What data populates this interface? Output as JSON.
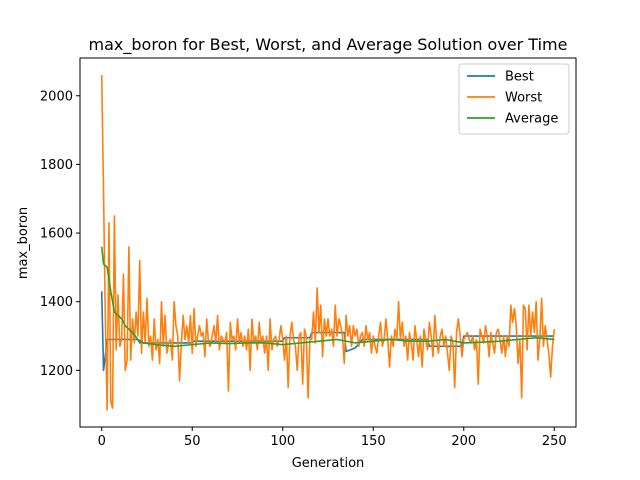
{
  "chart_data": {
    "type": "line",
    "title": "max_boron for Best, Worst, and Average Solution over Time",
    "xlabel": "Generation",
    "ylabel": "max_boron",
    "xlim": [
      -12,
      262
    ],
    "ylim": [
      1035,
      2110
    ],
    "xticks": [
      0,
      50,
      100,
      150,
      200,
      250
    ],
    "yticks": [
      1200,
      1400,
      1600,
      1800,
      2000
    ],
    "grid": false,
    "legend_position": "top-right",
    "series": [
      {
        "name": "Best",
        "color": "#1f77b4",
        "points": [
          [
            0,
            1430
          ],
          [
            1,
            1200
          ],
          [
            3,
            1290
          ],
          [
            20,
            1290
          ],
          [
            21,
            1280
          ],
          [
            50,
            1280
          ],
          [
            51,
            1285
          ],
          [
            100,
            1285
          ],
          [
            101,
            1295
          ],
          [
            115,
            1295
          ],
          [
            116,
            1310
          ],
          [
            134,
            1310
          ],
          [
            135,
            1255
          ],
          [
            140,
            1265
          ],
          [
            144,
            1290
          ],
          [
            180,
            1290
          ],
          [
            181,
            1270
          ],
          [
            199,
            1270
          ],
          [
            200,
            1300
          ],
          [
            250,
            1300
          ]
        ]
      },
      {
        "name": "Worst",
        "color": "#ff7f0e",
        "points": [
          [
            0,
            2060
          ],
          [
            1,
            1720
          ],
          [
            2,
            1350
          ],
          [
            3,
            1085
          ],
          [
            4,
            1630
          ],
          [
            5,
            1110
          ],
          [
            6,
            1090
          ],
          [
            7,
            1650
          ],
          [
            8,
            1260
          ],
          [
            9,
            1420
          ],
          [
            10,
            1270
          ],
          [
            11,
            1290
          ],
          [
            12,
            1480
          ],
          [
            13,
            1200
          ],
          [
            14,
            1230
          ],
          [
            15,
            1560
          ],
          [
            16,
            1230
          ],
          [
            17,
            1350
          ],
          [
            18,
            1280
          ],
          [
            19,
            1370
          ],
          [
            20,
            1300
          ],
          [
            21,
            1520
          ],
          [
            22,
            1250
          ],
          [
            23,
            1370
          ],
          [
            24,
            1280
          ],
          [
            25,
            1410
          ],
          [
            26,
            1270
          ],
          [
            27,
            1300
          ],
          [
            28,
            1230
          ],
          [
            29,
            1350
          ],
          [
            30,
            1260
          ],
          [
            31,
            1290
          ],
          [
            32,
            1220
          ],
          [
            33,
            1400
          ],
          [
            34,
            1270
          ],
          [
            35,
            1360
          ],
          [
            36,
            1250
          ],
          [
            37,
            1280
          ],
          [
            38,
            1290
          ],
          [
            39,
            1230
          ],
          [
            40,
            1400
          ],
          [
            41,
            1330
          ],
          [
            42,
            1300
          ],
          [
            43,
            1170
          ],
          [
            44,
            1280
          ],
          [
            45,
            1360
          ],
          [
            46,
            1290
          ],
          [
            47,
            1330
          ],
          [
            48,
            1280
          ],
          [
            49,
            1360
          ],
          [
            50,
            1250
          ],
          [
            51,
            1380
          ],
          [
            52,
            1270
          ],
          [
            53,
            1300
          ],
          [
            54,
            1330
          ],
          [
            55,
            1300
          ],
          [
            56,
            1310
          ],
          [
            57,
            1240
          ],
          [
            58,
            1350
          ],
          [
            59,
            1280
          ],
          [
            60,
            1270
          ],
          [
            61,
            1300
          ],
          [
            62,
            1330
          ],
          [
            63,
            1280
          ],
          [
            64,
            1360
          ],
          [
            65,
            1260
          ],
          [
            66,
            1300
          ],
          [
            67,
            1290
          ],
          [
            68,
            1280
          ],
          [
            69,
            1310
          ],
          [
            70,
            1140
          ],
          [
            71,
            1340
          ],
          [
            72,
            1290
          ],
          [
            73,
            1300
          ],
          [
            74,
            1260
          ],
          [
            75,
            1350
          ],
          [
            76,
            1280
          ],
          [
            77,
            1310
          ],
          [
            78,
            1270
          ],
          [
            79,
            1300
          ],
          [
            80,
            1260
          ],
          [
            81,
            1320
          ],
          [
            82,
            1200
          ],
          [
            83,
            1350
          ],
          [
            84,
            1280
          ],
          [
            85,
            1300
          ],
          [
            86,
            1260
          ],
          [
            87,
            1340
          ],
          [
            88,
            1280
          ],
          [
            89,
            1300
          ],
          [
            90,
            1250
          ],
          [
            91,
            1300
          ],
          [
            92,
            1200
          ],
          [
            93,
            1350
          ],
          [
            94,
            1260
          ],
          [
            95,
            1290
          ],
          [
            96,
            1300
          ],
          [
            97,
            1270
          ],
          [
            98,
            1290
          ],
          [
            99,
            1330
          ],
          [
            100,
            1290
          ],
          [
            101,
            1230
          ],
          [
            102,
            1300
          ],
          [
            103,
            1150
          ],
          [
            104,
            1300
          ],
          [
            105,
            1340
          ],
          [
            106,
            1290
          ],
          [
            107,
            1270
          ],
          [
            108,
            1200
          ],
          [
            109,
            1300
          ],
          [
            110,
            1310
          ],
          [
            111,
            1160
          ],
          [
            112,
            1320
          ],
          [
            113,
            1300
          ],
          [
            114,
            1120
          ],
          [
            115,
            1290
          ],
          [
            116,
            1290
          ],
          [
            117,
            1370
          ],
          [
            118,
            1280
          ],
          [
            119,
            1440
          ],
          [
            120,
            1310
          ],
          [
            121,
            1390
          ],
          [
            122,
            1240
          ],
          [
            123,
            1350
          ],
          [
            124,
            1300
          ],
          [
            125,
            1350
          ],
          [
            126,
            1300
          ],
          [
            127,
            1320
          ],
          [
            128,
            1270
          ],
          [
            129,
            1390
          ],
          [
            130,
            1300
          ],
          [
            131,
            1350
          ],
          [
            132,
            1330
          ],
          [
            133,
            1300
          ],
          [
            134,
            1220
          ],
          [
            135,
            1360
          ],
          [
            136,
            1300
          ],
          [
            137,
            1330
          ],
          [
            138,
            1270
          ],
          [
            139,
            1330
          ],
          [
            140,
            1300
          ],
          [
            141,
            1320
          ],
          [
            142,
            1270
          ],
          [
            143,
            1300
          ],
          [
            144,
            1310
          ],
          [
            145,
            1270
          ],
          [
            146,
            1330
          ],
          [
            147,
            1290
          ],
          [
            148,
            1310
          ],
          [
            149,
            1250
          ],
          [
            150,
            1300
          ],
          [
            151,
            1270
          ],
          [
            152,
            1250
          ],
          [
            153,
            1300
          ],
          [
            154,
            1340
          ],
          [
            155,
            1270
          ],
          [
            156,
            1290
          ],
          [
            157,
            1350
          ],
          [
            158,
            1290
          ],
          [
            159,
            1210
          ],
          [
            160,
            1300
          ],
          [
            161,
            1270
          ],
          [
            162,
            1320
          ],
          [
            163,
            1290
          ],
          [
            164,
            1400
          ],
          [
            165,
            1290
          ],
          [
            166,
            1340
          ],
          [
            167,
            1270
          ],
          [
            168,
            1300
          ],
          [
            169,
            1230
          ],
          [
            170,
            1310
          ],
          [
            171,
            1280
          ],
          [
            172,
            1230
          ],
          [
            173,
            1330
          ],
          [
            174,
            1290
          ],
          [
            175,
            1240
          ],
          [
            176,
            1300
          ],
          [
            177,
            1210
          ],
          [
            178,
            1320
          ],
          [
            179,
            1290
          ],
          [
            180,
            1260
          ],
          [
            181,
            1340
          ],
          [
            182,
            1300
          ],
          [
            183,
            1240
          ],
          [
            184,
            1360
          ],
          [
            185,
            1290
          ],
          [
            186,
            1250
          ],
          [
            187,
            1300
          ],
          [
            188,
            1320
          ],
          [
            189,
            1270
          ],
          [
            190,
            1300
          ],
          [
            191,
            1250
          ],
          [
            192,
            1200
          ],
          [
            193,
            1300
          ],
          [
            194,
            1280
          ],
          [
            195,
            1150
          ],
          [
            196,
            1310
          ],
          [
            197,
            1350
          ],
          [
            198,
            1300
          ],
          [
            199,
            1240
          ],
          [
            200,
            1290
          ],
          [
            201,
            1300
          ],
          [
            202,
            1310
          ],
          [
            203,
            1290
          ],
          [
            204,
            1280
          ],
          [
            205,
            1300
          ],
          [
            206,
            1260
          ],
          [
            207,
            1290
          ],
          [
            208,
            1160
          ],
          [
            209,
            1320
          ],
          [
            210,
            1300
          ],
          [
            211,
            1280
          ],
          [
            212,
            1330
          ],
          [
            213,
            1300
          ],
          [
            214,
            1240
          ],
          [
            215,
            1310
          ],
          [
            216,
            1280
          ],
          [
            217,
            1250
          ],
          [
            218,
            1310
          ],
          [
            219,
            1320
          ],
          [
            220,
            1290
          ],
          [
            221,
            1250
          ],
          [
            222,
            1300
          ],
          [
            223,
            1240
          ],
          [
            224,
            1300
          ],
          [
            225,
            1270
          ],
          [
            226,
            1390
          ],
          [
            227,
            1340
          ],
          [
            228,
            1380
          ],
          [
            229,
            1330
          ],
          [
            230,
            1220
          ],
          [
            231,
            1290
          ],
          [
            232,
            1120
          ],
          [
            233,
            1390
          ],
          [
            234,
            1380
          ],
          [
            235,
            1260
          ],
          [
            236,
            1390
          ],
          [
            237,
            1300
          ],
          [
            238,
            1370
          ],
          [
            239,
            1310
          ],
          [
            240,
            1400
          ],
          [
            241,
            1230
          ],
          [
            242,
            1290
          ],
          [
            243,
            1410
          ],
          [
            244,
            1270
          ],
          [
            245,
            1330
          ],
          [
            246,
            1290
          ],
          [
            247,
            1250
          ],
          [
            248,
            1180
          ],
          [
            249,
            1270
          ],
          [
            250,
            1320
          ]
        ]
      },
      {
        "name": "Average",
        "color": "#2ca02c",
        "points": [
          [
            0,
            1560
          ],
          [
            1,
            1510
          ],
          [
            3,
            1500
          ],
          [
            5,
            1430
          ],
          [
            7,
            1370
          ],
          [
            9,
            1360
          ],
          [
            11,
            1350
          ],
          [
            13,
            1330
          ],
          [
            15,
            1320
          ],
          [
            17,
            1310
          ],
          [
            20,
            1290
          ],
          [
            23,
            1280
          ],
          [
            30,
            1275
          ],
          [
            40,
            1270
          ],
          [
            50,
            1275
          ],
          [
            60,
            1280
          ],
          [
            70,
            1278
          ],
          [
            80,
            1280
          ],
          [
            90,
            1280
          ],
          [
            100,
            1275
          ],
          [
            110,
            1280
          ],
          [
            120,
            1285
          ],
          [
            130,
            1290
          ],
          [
            140,
            1280
          ],
          [
            150,
            1285
          ],
          [
            160,
            1290
          ],
          [
            170,
            1285
          ],
          [
            180,
            1285
          ],
          [
            190,
            1290
          ],
          [
            200,
            1280
          ],
          [
            210,
            1282
          ],
          [
            220,
            1285
          ],
          [
            230,
            1290
          ],
          [
            240,
            1295
          ],
          [
            250,
            1290
          ]
        ]
      }
    ]
  }
}
